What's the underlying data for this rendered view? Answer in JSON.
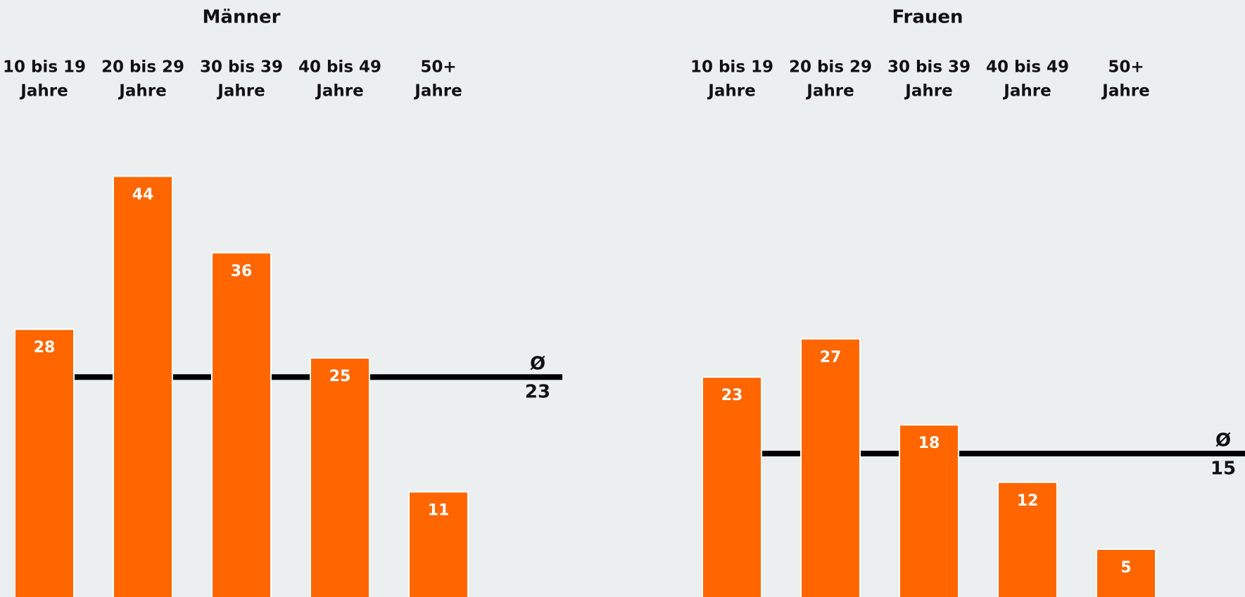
{
  "chart_data": [
    {
      "type": "bar",
      "title": "Männer",
      "categories": [
        [
          "10 bis 19",
          "Jahre"
        ],
        [
          "20 bis 29",
          "Jahre"
        ],
        [
          "30 bis 39",
          "Jahre"
        ],
        [
          "40 bis 49",
          "Jahre"
        ],
        [
          "50+",
          "Jahre"
        ]
      ],
      "values": [
        28,
        44,
        36,
        25,
        11
      ],
      "color": "#ff6600",
      "average": {
        "label": "Ø",
        "value": 23
      }
    },
    {
      "type": "bar",
      "title": "Frauen",
      "categories": [
        [
          "10 bis 19",
          "Jahre"
        ],
        [
          "20 bis 29",
          "Jahre"
        ],
        [
          "30 bis 39",
          "Jahre"
        ],
        [
          "40 bis 49",
          "Jahre"
        ],
        [
          "50+",
          "Jahre"
        ]
      ],
      "values": [
        23,
        27,
        18,
        12,
        5
      ],
      "color": "#ff6600",
      "average": {
        "label": "Ø",
        "value": 15
      }
    }
  ]
}
